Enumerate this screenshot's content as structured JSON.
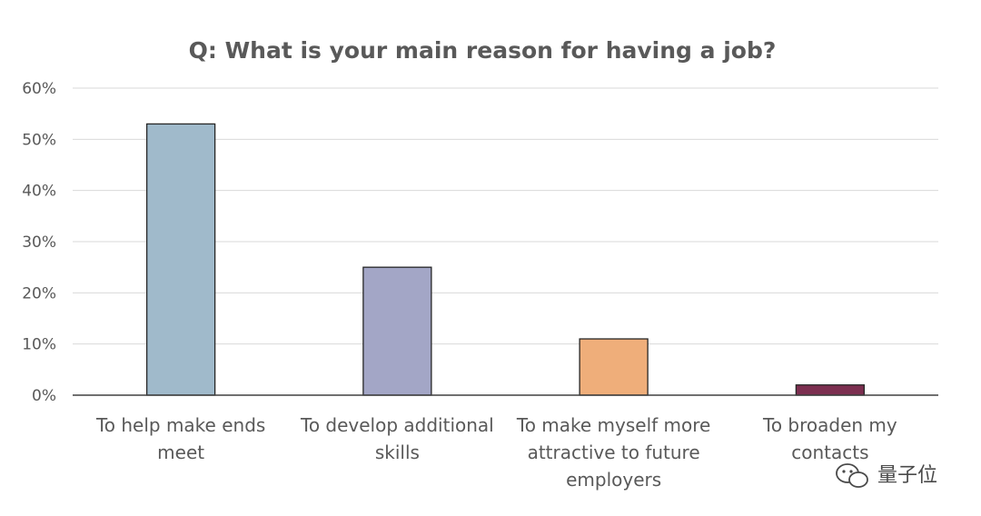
{
  "chart_data": {
    "type": "bar",
    "title": "Q: What is your main reason for having a job?",
    "categories": [
      [
        "To help make ends",
        "meet"
      ],
      [
        "To develop additional",
        "skills"
      ],
      [
        "To make myself more",
        "attractive to future",
        "employers"
      ],
      [
        "To broaden my",
        "contacts"
      ]
    ],
    "values": [
      0.53,
      0.25,
      0.11,
      0.02
    ],
    "colors": [
      "#a0bacb",
      "#a3a6c6",
      "#efae7a",
      "#7c2f50"
    ],
    "ylim": [
      0,
      0.6
    ],
    "yticks": [
      0,
      0.1,
      0.2,
      0.3,
      0.4,
      0.5,
      0.6
    ],
    "ytick_labels": [
      "0%",
      "10%",
      "20%",
      "30%",
      "40%",
      "50%",
      "60%"
    ],
    "xlabel": "",
    "ylabel": "",
    "grid": true,
    "legend": "none"
  },
  "watermark": {
    "text": "量子位",
    "icon": "wechat-icon"
  }
}
